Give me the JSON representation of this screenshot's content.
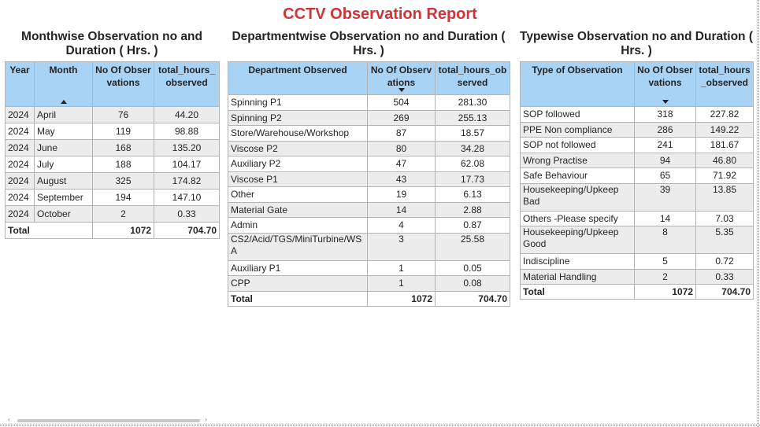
{
  "report_title": "CCTV Observation Report",
  "monthwise": {
    "title": "Monthwise Observation no and Duration ( Hrs. )",
    "headers": {
      "year": "Year",
      "month": "Month",
      "count": "No Of Observations",
      "hours": "total_hours_observed"
    },
    "rows": [
      {
        "year": "2024",
        "month": "April",
        "count": "76",
        "hours": "44.20"
      },
      {
        "year": "2024",
        "month": "May",
        "count": "119",
        "hours": "98.88"
      },
      {
        "year": "2024",
        "month": "June",
        "count": "168",
        "hours": "135.20"
      },
      {
        "year": "2024",
        "month": "July",
        "count": "188",
        "hours": "104.17"
      },
      {
        "year": "2024",
        "month": "August",
        "count": "325",
        "hours": "174.82"
      },
      {
        "year": "2024",
        "month": "September",
        "count": "194",
        "hours": "147.10"
      },
      {
        "year": "2024",
        "month": "October",
        "count": "2",
        "hours": "0.33"
      }
    ],
    "total": {
      "label": "Total",
      "count": "1072",
      "hours": "704.70"
    }
  },
  "departmentwise": {
    "title": "Departmentwise Observation no and Duration ( Hrs. )",
    "headers": {
      "dept": "Department Observed",
      "count": "No Of Observations",
      "hours": "total_hours_observed"
    },
    "rows": [
      {
        "dept": "Spinning P1",
        "count": "504",
        "hours": "281.30"
      },
      {
        "dept": "Spinning P2",
        "count": "269",
        "hours": "255.13"
      },
      {
        "dept": "Store/Warehouse/Workshop",
        "count": "87",
        "hours": "18.57"
      },
      {
        "dept": "Viscose P2",
        "count": "80",
        "hours": "34.28"
      },
      {
        "dept": "Auxiliary P2",
        "count": "47",
        "hours": "62.08"
      },
      {
        "dept": "Viscose P1",
        "count": "43",
        "hours": "17.73"
      },
      {
        "dept": "Other",
        "count": "19",
        "hours": "6.13"
      },
      {
        "dept": "Material Gate",
        "count": "14",
        "hours": "2.88"
      },
      {
        "dept": "Admin",
        "count": "4",
        "hours": "0.87"
      },
      {
        "dept": "CS2/Acid/TGS/MiniTurbine/WSA",
        "count": "3",
        "hours": "25.58"
      },
      {
        "dept": "Auxiliary P1",
        "count": "1",
        "hours": "0.05"
      },
      {
        "dept": "CPP",
        "count": "1",
        "hours": "0.08"
      }
    ],
    "total": {
      "label": "Total",
      "count": "1072",
      "hours": "704.70"
    }
  },
  "typewise": {
    "title": "Typewise Observation no and Duration ( Hrs. )",
    "headers": {
      "type": "Type of Observation",
      "count": "No Of Observations",
      "hours": "total_hours_observed"
    },
    "rows": [
      {
        "type": "SOP followed",
        "count": "318",
        "hours": "227.82"
      },
      {
        "type": "PPE Non compliance",
        "count": "286",
        "hours": "149.22"
      },
      {
        "type": "SOP not followed",
        "count": "241",
        "hours": "181.67"
      },
      {
        "type": "Wrong Practise",
        "count": "94",
        "hours": "46.80"
      },
      {
        "type": "Safe Behaviour",
        "count": "65",
        "hours": "71.92"
      },
      {
        "type": "Housekeeping/Upkeep Bad",
        "count": "39",
        "hours": "13.85"
      },
      {
        "type": "Others -Please specify",
        "count": "14",
        "hours": "7.03"
      },
      {
        "type": "Housekeeping/Upkeep Good",
        "count": "8",
        "hours": "5.35"
      },
      {
        "type": "Indiscipline",
        "count": "5",
        "hours": "0.72"
      },
      {
        "type": "Material Handling",
        "count": "2",
        "hours": "0.33"
      }
    ],
    "total": {
      "label": "Total",
      "count": "1072",
      "hours": "704.70"
    }
  }
}
